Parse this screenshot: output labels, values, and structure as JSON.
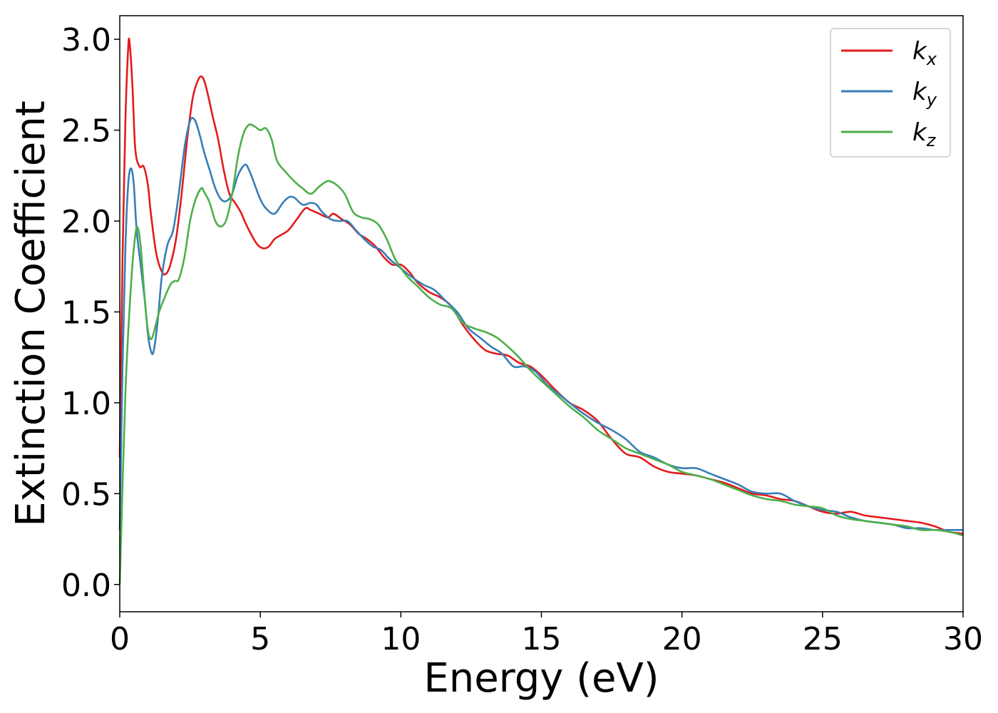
{
  "chart_data": {
    "type": "line",
    "xlabel": "Energy (eV)",
    "ylabel": "Extinction Coefficient",
    "xlim": [
      0,
      30
    ],
    "ylim": [
      -0.15,
      3.13
    ],
    "xticks": [
      0,
      5,
      10,
      15,
      20,
      25,
      30
    ],
    "xtick_labels": [
      "0",
      "5",
      "10",
      "15",
      "20",
      "25",
      "30"
    ],
    "yticks": [
      0.0,
      0.5,
      1.0,
      1.5,
      2.0,
      2.5,
      3.0
    ],
    "ytick_labels": [
      "0.0",
      "0.5",
      "1.0",
      "1.5",
      "2.0",
      "2.5",
      "3.0"
    ],
    "grid": false,
    "legend_position": "top-right",
    "series": [
      {
        "name": "k",
        "name_sub": "x",
        "color": "#e41a1c",
        "x": [
          0,
          0.1,
          0.2,
          0.3,
          0.35,
          0.45,
          0.55,
          0.7,
          0.85,
          1.0,
          1.1,
          1.3,
          1.5,
          1.65,
          1.8,
          2.0,
          2.2,
          2.4,
          2.6,
          2.8,
          2.95,
          3.1,
          3.3,
          3.5,
          3.7,
          3.9,
          4.1,
          4.3,
          4.5,
          4.7,
          4.9,
          5.1,
          5.3,
          5.5,
          5.7,
          6.0,
          6.3,
          6.6,
          6.8,
          7.1,
          7.4,
          7.6,
          7.9,
          8.2,
          8.5,
          8.8,
          9.1,
          9.4,
          9.7,
          10.0,
          10.3,
          10.6,
          11.0,
          11.4,
          11.8,
          12.2,
          12.6,
          13.0,
          13.4,
          13.8,
          14.2,
          14.6,
          15.0,
          15.5,
          16.0,
          16.5,
          17.0,
          17.5,
          18.0,
          18.5,
          19.0,
          19.5,
          20.0,
          20.5,
          21.0,
          21.5,
          22.0,
          22.5,
          23.0,
          23.5,
          24.0,
          24.5,
          25.0,
          25.5,
          26.0,
          26.5,
          27.0,
          27.5,
          28.0,
          28.5,
          29.0,
          29.5,
          30.0
        ],
        "y": [
          0.7,
          1.8,
          2.55,
          2.95,
          2.98,
          2.75,
          2.4,
          2.3,
          2.3,
          2.2,
          2.05,
          1.82,
          1.72,
          1.71,
          1.76,
          1.9,
          2.15,
          2.45,
          2.68,
          2.78,
          2.79,
          2.72,
          2.58,
          2.45,
          2.28,
          2.15,
          2.1,
          2.05,
          1.98,
          1.92,
          1.87,
          1.85,
          1.86,
          1.9,
          1.92,
          1.95,
          2.01,
          2.07,
          2.06,
          2.04,
          2.02,
          2.04,
          2.01,
          1.98,
          1.93,
          1.9,
          1.86,
          1.8,
          1.76,
          1.76,
          1.72,
          1.66,
          1.61,
          1.58,
          1.53,
          1.43,
          1.35,
          1.29,
          1.27,
          1.26,
          1.22,
          1.2,
          1.15,
          1.07,
          1.0,
          0.96,
          0.9,
          0.8,
          0.72,
          0.7,
          0.65,
          0.62,
          0.61,
          0.6,
          0.58,
          0.56,
          0.53,
          0.5,
          0.49,
          0.47,
          0.46,
          0.43,
          0.4,
          0.39,
          0.4,
          0.38,
          0.37,
          0.36,
          0.35,
          0.34,
          0.32,
          0.29,
          0.28
        ]
      },
      {
        "name": "k",
        "name_sub": "y",
        "color": "#377eb8",
        "x": [
          0,
          0.1,
          0.2,
          0.3,
          0.4,
          0.5,
          0.6,
          0.75,
          0.9,
          1.0,
          1.1,
          1.2,
          1.35,
          1.5,
          1.7,
          1.9,
          2.1,
          2.3,
          2.5,
          2.65,
          2.8,
          3.0,
          3.2,
          3.4,
          3.6,
          3.8,
          4.0,
          4.2,
          4.45,
          4.6,
          4.8,
          5.0,
          5.2,
          5.5,
          5.8,
          6.0,
          6.2,
          6.5,
          6.8,
          7.0,
          7.2,
          7.5,
          7.8,
          8.1,
          8.4,
          8.7,
          9.0,
          9.3,
          9.6,
          10.0,
          10.4,
          10.8,
          11.2,
          11.6,
          12.0,
          12.4,
          12.8,
          13.2,
          13.6,
          14.0,
          14.4,
          14.8,
          15.2,
          15.6,
          16.0,
          16.5,
          17.0,
          17.5,
          18.0,
          18.5,
          19.0,
          19.5,
          20.0,
          20.5,
          21.0,
          21.5,
          22.0,
          22.5,
          23.0,
          23.5,
          24.0,
          24.5,
          25.0,
          25.5,
          26.0,
          26.5,
          27.0,
          27.5,
          28.0,
          28.5,
          29.0,
          29.5,
          30.0
        ],
        "y": [
          0.3,
          1.2,
          1.85,
          2.2,
          2.29,
          2.2,
          1.95,
          1.75,
          1.55,
          1.38,
          1.29,
          1.28,
          1.45,
          1.7,
          1.87,
          1.95,
          2.15,
          2.4,
          2.55,
          2.56,
          2.5,
          2.38,
          2.28,
          2.18,
          2.12,
          2.11,
          2.15,
          2.25,
          2.31,
          2.28,
          2.2,
          2.12,
          2.07,
          2.04,
          2.1,
          2.13,
          2.13,
          2.09,
          2.1,
          2.09,
          2.05,
          2.01,
          2.0,
          2.0,
          1.95,
          1.9,
          1.86,
          1.84,
          1.79,
          1.74,
          1.69,
          1.65,
          1.62,
          1.56,
          1.5,
          1.41,
          1.36,
          1.31,
          1.27,
          1.2,
          1.2,
          1.17,
          1.1,
          1.05,
          1.0,
          0.94,
          0.89,
          0.85,
          0.8,
          0.73,
          0.7,
          0.66,
          0.64,
          0.64,
          0.61,
          0.58,
          0.55,
          0.51,
          0.5,
          0.5,
          0.46,
          0.43,
          0.41,
          0.4,
          0.37,
          0.35,
          0.34,
          0.33,
          0.31,
          0.31,
          0.3,
          0.3,
          0.3
        ]
      },
      {
        "name": "k",
        "name_sub": "z",
        "color": "#4daf4a",
        "x": [
          0,
          0.2,
          0.4,
          0.55,
          0.65,
          0.75,
          0.9,
          1.0,
          1.1,
          1.2,
          1.4,
          1.6,
          1.8,
          1.95,
          2.1,
          2.3,
          2.5,
          2.7,
          2.9,
          3.0,
          3.2,
          3.4,
          3.6,
          3.8,
          4.0,
          4.2,
          4.4,
          4.6,
          4.8,
          5.0,
          5.2,
          5.4,
          5.6,
          5.9,
          6.2,
          6.5,
          6.8,
          7.1,
          7.4,
          7.7,
          8.0,
          8.3,
          8.6,
          8.9,
          9.2,
          9.5,
          9.8,
          10.2,
          10.6,
          11.0,
          11.4,
          11.8,
          12.2,
          12.6,
          13.0,
          13.4,
          13.8,
          14.2,
          14.6,
          15.0,
          15.5,
          16.0,
          16.5,
          17.0,
          17.5,
          18.0,
          18.5,
          19.0,
          19.5,
          20.0,
          20.5,
          21.0,
          21.5,
          22.0,
          22.5,
          23.0,
          23.5,
          24.0,
          24.5,
          25.0,
          25.5,
          26.0,
          26.5,
          27.0,
          27.5,
          28.0,
          28.5,
          29.0,
          29.5,
          30.0
        ],
        "y": [
          0.0,
          1.05,
          1.65,
          1.92,
          1.96,
          1.85,
          1.55,
          1.4,
          1.35,
          1.38,
          1.5,
          1.58,
          1.65,
          1.67,
          1.68,
          1.8,
          2.0,
          2.12,
          2.18,
          2.16,
          2.1,
          2.0,
          1.97,
          2.01,
          2.15,
          2.35,
          2.48,
          2.53,
          2.52,
          2.5,
          2.51,
          2.45,
          2.33,
          2.27,
          2.22,
          2.18,
          2.15,
          2.19,
          2.22,
          2.2,
          2.15,
          2.05,
          2.02,
          2.01,
          1.98,
          1.9,
          1.79,
          1.7,
          1.64,
          1.58,
          1.54,
          1.52,
          1.44,
          1.41,
          1.39,
          1.36,
          1.31,
          1.25,
          1.18,
          1.12,
          1.05,
          0.98,
          0.92,
          0.85,
          0.8,
          0.75,
          0.72,
          0.69,
          0.66,
          0.62,
          0.6,
          0.58,
          0.55,
          0.52,
          0.49,
          0.47,
          0.46,
          0.44,
          0.43,
          0.42,
          0.38,
          0.36,
          0.35,
          0.34,
          0.33,
          0.32,
          0.3,
          0.3,
          0.29,
          0.27
        ]
      }
    ]
  }
}
